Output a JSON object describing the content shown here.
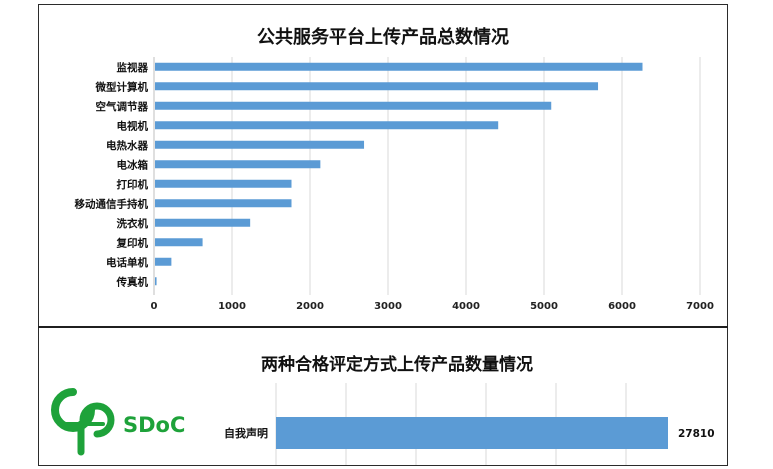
{
  "chart_data": [
    {
      "type": "bar",
      "orientation": "horizontal",
      "title": "公共服务平台上传产品总数情况",
      "categories": [
        "监视器",
        "微型计算机",
        "空气调节器",
        "电视机",
        "电热水器",
        "电冰箱",
        "打印机",
        "移动通信手持机",
        "洗衣机",
        "复印机",
        "电话单机",
        "传真机"
      ],
      "values": [
        6250,
        5680,
        5080,
        4400,
        2680,
        2120,
        1750,
        1750,
        1220,
        610,
        210,
        20
      ],
      "xlim": [
        0,
        7000
      ],
      "xticks": [
        0,
        1000,
        2000,
        3000,
        4000,
        5000,
        6000,
        7000
      ],
      "grid": "vertical",
      "legend": "none",
      "bar_color": "#5b9bd5"
    },
    {
      "type": "bar",
      "orientation": "horizontal",
      "title": "两种合格评定方式上传产品数量情况",
      "categories": [
        "自我声明"
      ],
      "values": [
        27810
      ],
      "data_labels": [
        "27810"
      ],
      "grid": "vertical",
      "legend": "none",
      "bar_color": "#5b9bd5"
    }
  ],
  "logo": {
    "text": "SDoC",
    "color": "#1ea23a"
  }
}
